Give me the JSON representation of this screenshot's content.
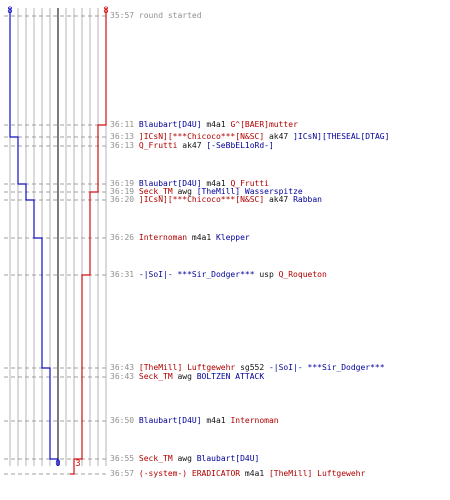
{
  "colors": {
    "team_red": "#d01010",
    "team_blue": "#1010c0",
    "grid": "#b4b4b4",
    "divider": "#505050"
  },
  "scores": {
    "blue_start": "8",
    "red_start": "8",
    "blue_end": "0",
    "red_end": "3"
  },
  "events": [
    {
      "time": "35:57",
      "parts": [
        {
          "t": "round started",
          "c": "ts"
        }
      ]
    },
    {
      "time": "36:11",
      "parts": [
        {
          "t": "Blaubart[D4U]",
          "c": "blue"
        },
        {
          "t": " m4a1 ",
          "c": "txt"
        },
        {
          "t": "G^[BAER]mutter",
          "c": "red"
        }
      ]
    },
    {
      "time": "36:13",
      "parts": [
        {
          "t": "]ICsN][***Chicoco***[N&SC]",
          "c": "red"
        },
        {
          "t": " ak47 ",
          "c": "txt"
        },
        {
          "t": "]ICsN][THESEAL[DTAG]",
          "c": "blue"
        }
      ]
    },
    {
      "time": "36:13",
      "parts": [
        {
          "t": "Q_Frutti",
          "c": "red"
        },
        {
          "t": " ak47 ",
          "c": "txt"
        },
        {
          "t": "[-SeBbEL1oRd-]",
          "c": "blue"
        }
      ]
    },
    {
      "time": "36:19",
      "parts": [
        {
          "t": "Blaubart[D4U]",
          "c": "blue"
        },
        {
          "t": " m4a1 ",
          "c": "txt"
        },
        {
          "t": "Q_Frutti",
          "c": "red"
        }
      ]
    },
    {
      "time": "36:19",
      "parts": [
        {
          "t": "Seck_TM",
          "c": "red"
        },
        {
          "t": " awg ",
          "c": "txt"
        },
        {
          "t": "[TheMill] Wasserspitze",
          "c": "blue"
        }
      ]
    },
    {
      "time": "36:20",
      "parts": [
        {
          "t": "]ICsN][***Chicoco***[N&SC]",
          "c": "red"
        },
        {
          "t": " ak47 ",
          "c": "txt"
        },
        {
          "t": "Rabban",
          "c": "blue"
        }
      ]
    },
    {
      "time": "36:26",
      "parts": [
        {
          "t": "Internoman",
          "c": "red"
        },
        {
          "t": " m4a1 ",
          "c": "txt"
        },
        {
          "t": "Klepper",
          "c": "blue"
        }
      ]
    },
    {
      "time": "36:31",
      "parts": [
        {
          "t": "-|SoI|- ***Sir_Dodger***",
          "c": "blue"
        },
        {
          "t": " usp ",
          "c": "txt"
        },
        {
          "t": "Q_Roqueton",
          "c": "red"
        }
      ]
    },
    {
      "time": "36:43",
      "parts": [
        {
          "t": "[TheMill] Luftgewehr",
          "c": "red"
        },
        {
          "t": " sg552 ",
          "c": "txt"
        },
        {
          "t": "-|SoI|- ***Sir_Dodger***",
          "c": "blue"
        }
      ]
    },
    {
      "time": "36:43",
      "parts": [
        {
          "t": "Seck_TM",
          "c": "red"
        },
        {
          "t": " awg ",
          "c": "txt"
        },
        {
          "t": "BOLTZEN ATTACK",
          "c": "blue"
        }
      ]
    },
    {
      "time": "36:50",
      "parts": [
        {
          "t": "Blaubart[D4U]",
          "c": "blue"
        },
        {
          "t": " m4a1 ",
          "c": "txt"
        },
        {
          "t": "Internoman",
          "c": "red"
        }
      ]
    },
    {
      "time": "36:55",
      "parts": [
        {
          "t": "Seck_TM",
          "c": "red"
        },
        {
          "t": " awg ",
          "c": "txt"
        },
        {
          "t": "Blaubart[D4U]",
          "c": "blue"
        }
      ]
    },
    {
      "time": "36:57",
      "parts": [
        {
          "t": "(-system-)",
          "c": "red"
        },
        {
          "t": " ERADICATOR",
          "c": "red"
        },
        {
          "t": " m4a1 ",
          "c": "txt"
        },
        {
          "t": "[TheMill] Luftgewehr",
          "c": "red"
        }
      ]
    }
  ]
}
